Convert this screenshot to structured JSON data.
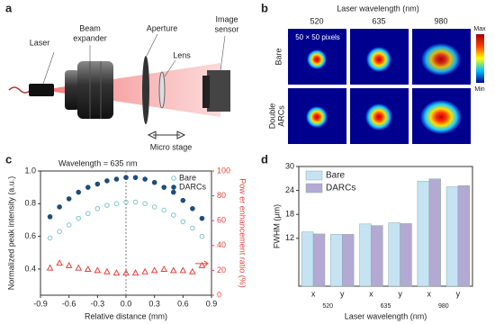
{
  "panel_labels": [
    "a",
    "b",
    "c",
    "d"
  ],
  "setup": {
    "laser": "Laser",
    "beam_expander": [
      "Beam",
      "expander"
    ],
    "aperture": "Aperture",
    "lens": "Lens",
    "image_sensor": [
      "Image",
      "sensor"
    ],
    "micro_stage": "Micro stage"
  },
  "beam_profiles": {
    "title": "Laser wavelength (nm)",
    "wavelengths": [
      "520",
      "635",
      "980"
    ],
    "rows": [
      [
        "Bare"
      ],
      [
        "Double",
        "ARCs"
      ]
    ],
    "pixel_note": "50 × 50 pixels",
    "colorbar": {
      "max": "Max",
      "min": "Min"
    }
  },
  "chart_data": [
    {
      "type": "scatter",
      "annotation": "Wavelength = 635 nm",
      "x_label": "Relative distance (mm)",
      "y_label": "Normalized peak intensity (a.u.)",
      "y2_label": "Pow er enhancement ratio (%)",
      "x": [
        -0.8,
        -0.7,
        -0.6,
        -0.5,
        -0.4,
        -0.3,
        -0.2,
        -0.1,
        0,
        0.1,
        0.2,
        0.3,
        0.4,
        0.5,
        0.6,
        0.7,
        0.8
      ],
      "series": [
        {
          "name": "Bare",
          "color": "#7fc6c6",
          "marker": "circle-open",
          "values": [
            0.59,
            0.63,
            0.67,
            0.71,
            0.74,
            0.77,
            0.79,
            0.8,
            0.81,
            0.81,
            0.8,
            0.78,
            0.76,
            0.73,
            0.69,
            0.65,
            0.6
          ]
        },
        {
          "name": "DARCs",
          "color": "#1f4e79",
          "marker": "circle",
          "values": [
            0.72,
            0.78,
            0.83,
            0.87,
            0.9,
            0.92,
            0.94,
            0.95,
            0.96,
            0.96,
            0.95,
            0.93,
            0.9,
            0.87,
            0.82,
            0.77,
            0.71
          ]
        },
        {
          "color": "#e8413c",
          "marker": "triangle-open",
          "axis": "y2",
          "values": [
            22,
            26,
            24,
            22,
            21,
            20,
            19,
            18,
            18,
            18,
            19,
            20,
            21,
            20,
            20,
            19,
            24
          ]
        }
      ],
      "xlim": [
        -0.9,
        0.9
      ],
      "xticks": [
        -0.9,
        -0.6,
        -0.3,
        {
          "value": 0,
          "label": "0.0"
        },
        0.3,
        0.6,
        0.9
      ],
      "ylim": [
        0.24,
        1.0
      ],
      "yticks": [
        0.4,
        0.6,
        0.8,
        {
          "value": 1,
          "label": "1.0"
        }
      ],
      "y2lim": [
        0,
        100
      ],
      "y2ticks": [
        0,
        20,
        40,
        60,
        80,
        100
      ],
      "legend": "upper right"
    },
    {
      "type": "bar",
      "x_label": "Laser wavelength (nm)",
      "y_label": "FWHM (μm)",
      "categories": [
        "x",
        "y",
        "x",
        "y",
        "x",
        "y"
      ],
      "group_labels": [
        "520",
        "635",
        "980"
      ],
      "series": [
        {
          "name": "Bare",
          "color": "#c5e3f2",
          "values": [
            13.6,
            13.0,
            15.6,
            15.9,
            26.3,
            24.9
          ]
        },
        {
          "name": "DARCs",
          "color": "#b3a9d3",
          "values": [
            13.1,
            13.0,
            15.2,
            15.7,
            26.9,
            25.2
          ]
        }
      ],
      "ylim": [
        0,
        30
      ],
      "yticks": [
        12,
        18,
        24,
        30
      ],
      "legend": "upper left"
    }
  ]
}
